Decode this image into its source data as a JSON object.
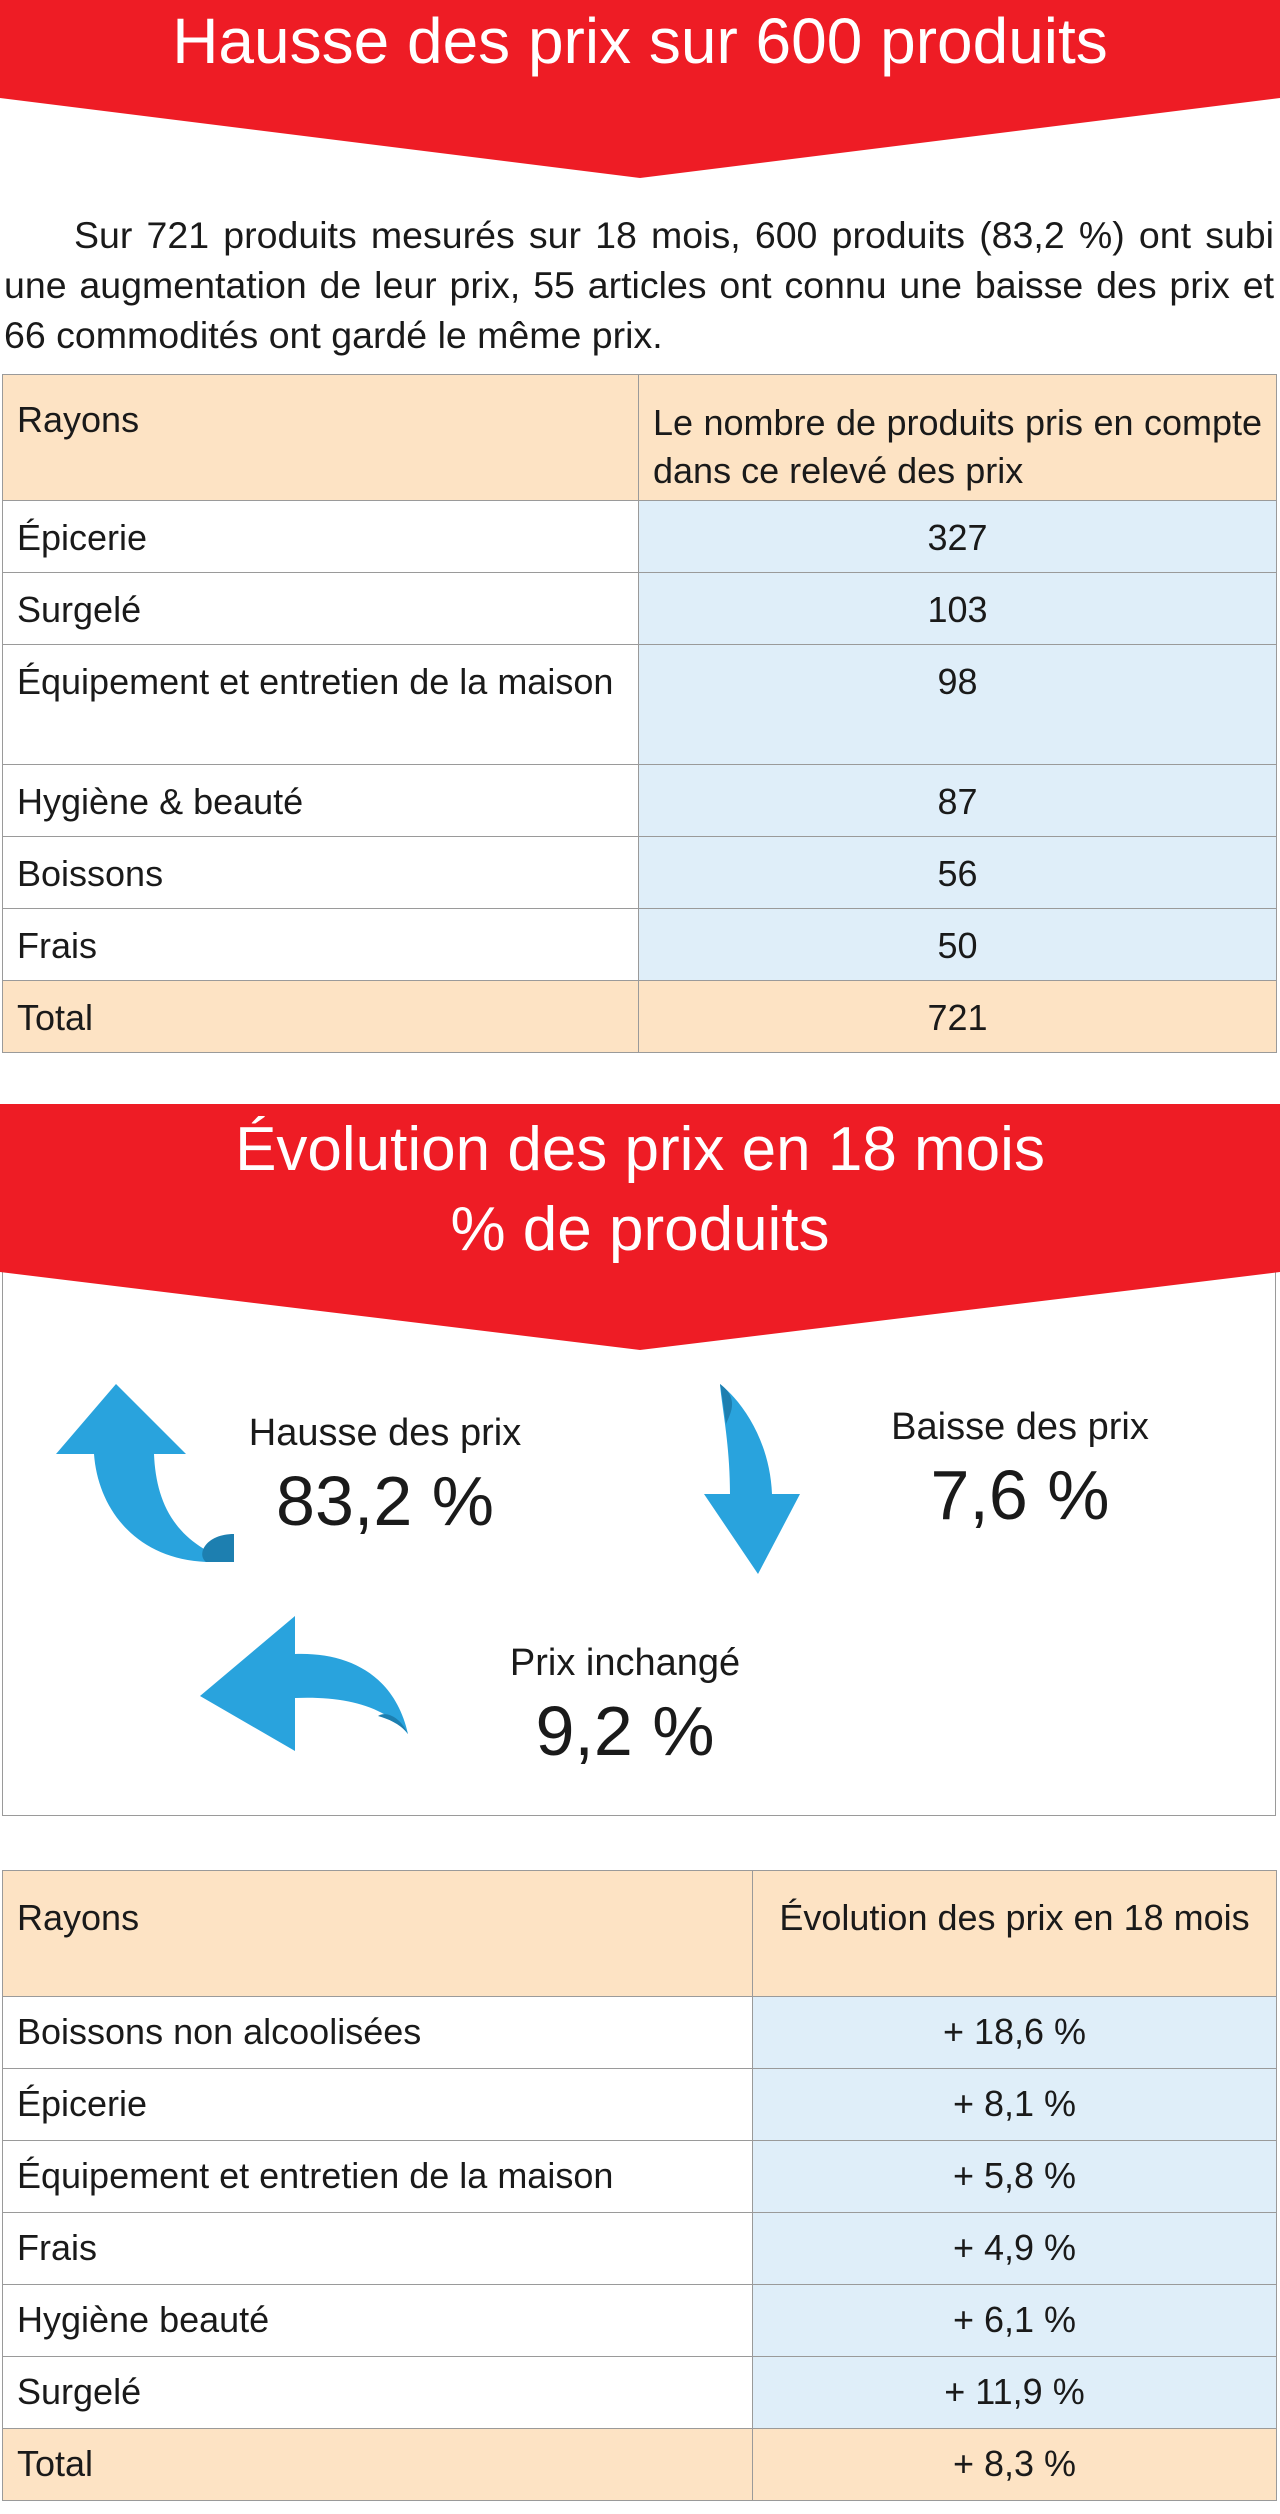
{
  "banner1": {
    "title": "Hausse des prix sur 600 produits"
  },
  "intro": "Sur 721 produits mesurés sur 18 mois, 600 produits (83,2 %) ont subi une augmentation de leur prix, 55 articles ont connu une baisse des prix et 66 commodités ont gardé le même prix.",
  "table1": {
    "headers": [
      "Rayons",
      "Le nombre de produits pris en compte dans ce relevé des prix"
    ],
    "rows": [
      {
        "label": "Épicerie",
        "value": "327"
      },
      {
        "label": "Surgelé",
        "value": "103"
      },
      {
        "label": "Équipement et entretien de la maison",
        "value": "98"
      },
      {
        "label": "Hygiène & beauté",
        "value": "87"
      },
      {
        "label": "Boissons",
        "value": "56"
      },
      {
        "label": "Frais",
        "value": "50"
      }
    ],
    "total": {
      "label": "Total",
      "value": "721"
    }
  },
  "banner2": {
    "title_line1": "Évolution des prix en 18 mois",
    "title_line2": "% de produits"
  },
  "evolution": {
    "up": {
      "label": "Hausse des prix",
      "value": "83,2 %",
      "icon": "arrow-up-curved-icon"
    },
    "down": {
      "label": "Baisse des prix",
      "value": "7,6 %",
      "icon": "arrow-down-curved-icon"
    },
    "same": {
      "label": "Prix inchangé",
      "value": "9,2 %",
      "icon": "arrow-left-curved-icon"
    }
  },
  "table2": {
    "headers": [
      "Rayons",
      "Évolution des prix en 18 mois"
    ],
    "rows": [
      {
        "label": "Boissons non alcoolisées",
        "value": "+ 18,6 %"
      },
      {
        "label": "Épicerie",
        "value": "+ 8,1 %"
      },
      {
        "label": "Équipement et entretien de la maison",
        "value": "+ 5,8 %"
      },
      {
        "label": "Frais",
        "value": "+ 4,9 %"
      },
      {
        "label": "Hygiène beauté",
        "value": "+ 6,1 %"
      },
      {
        "label": "Surgelé",
        "value": "+ 11,9 %"
      }
    ],
    "total": {
      "label": "Total",
      "value": "+ 8,3 %"
    }
  },
  "colors": {
    "banner_red": "#ee1c25",
    "header_peach": "#fde3c4",
    "value_blue": "#dfeef9",
    "arrow_blue": "#29a3dd",
    "border_gray": "#9a9a9a"
  }
}
